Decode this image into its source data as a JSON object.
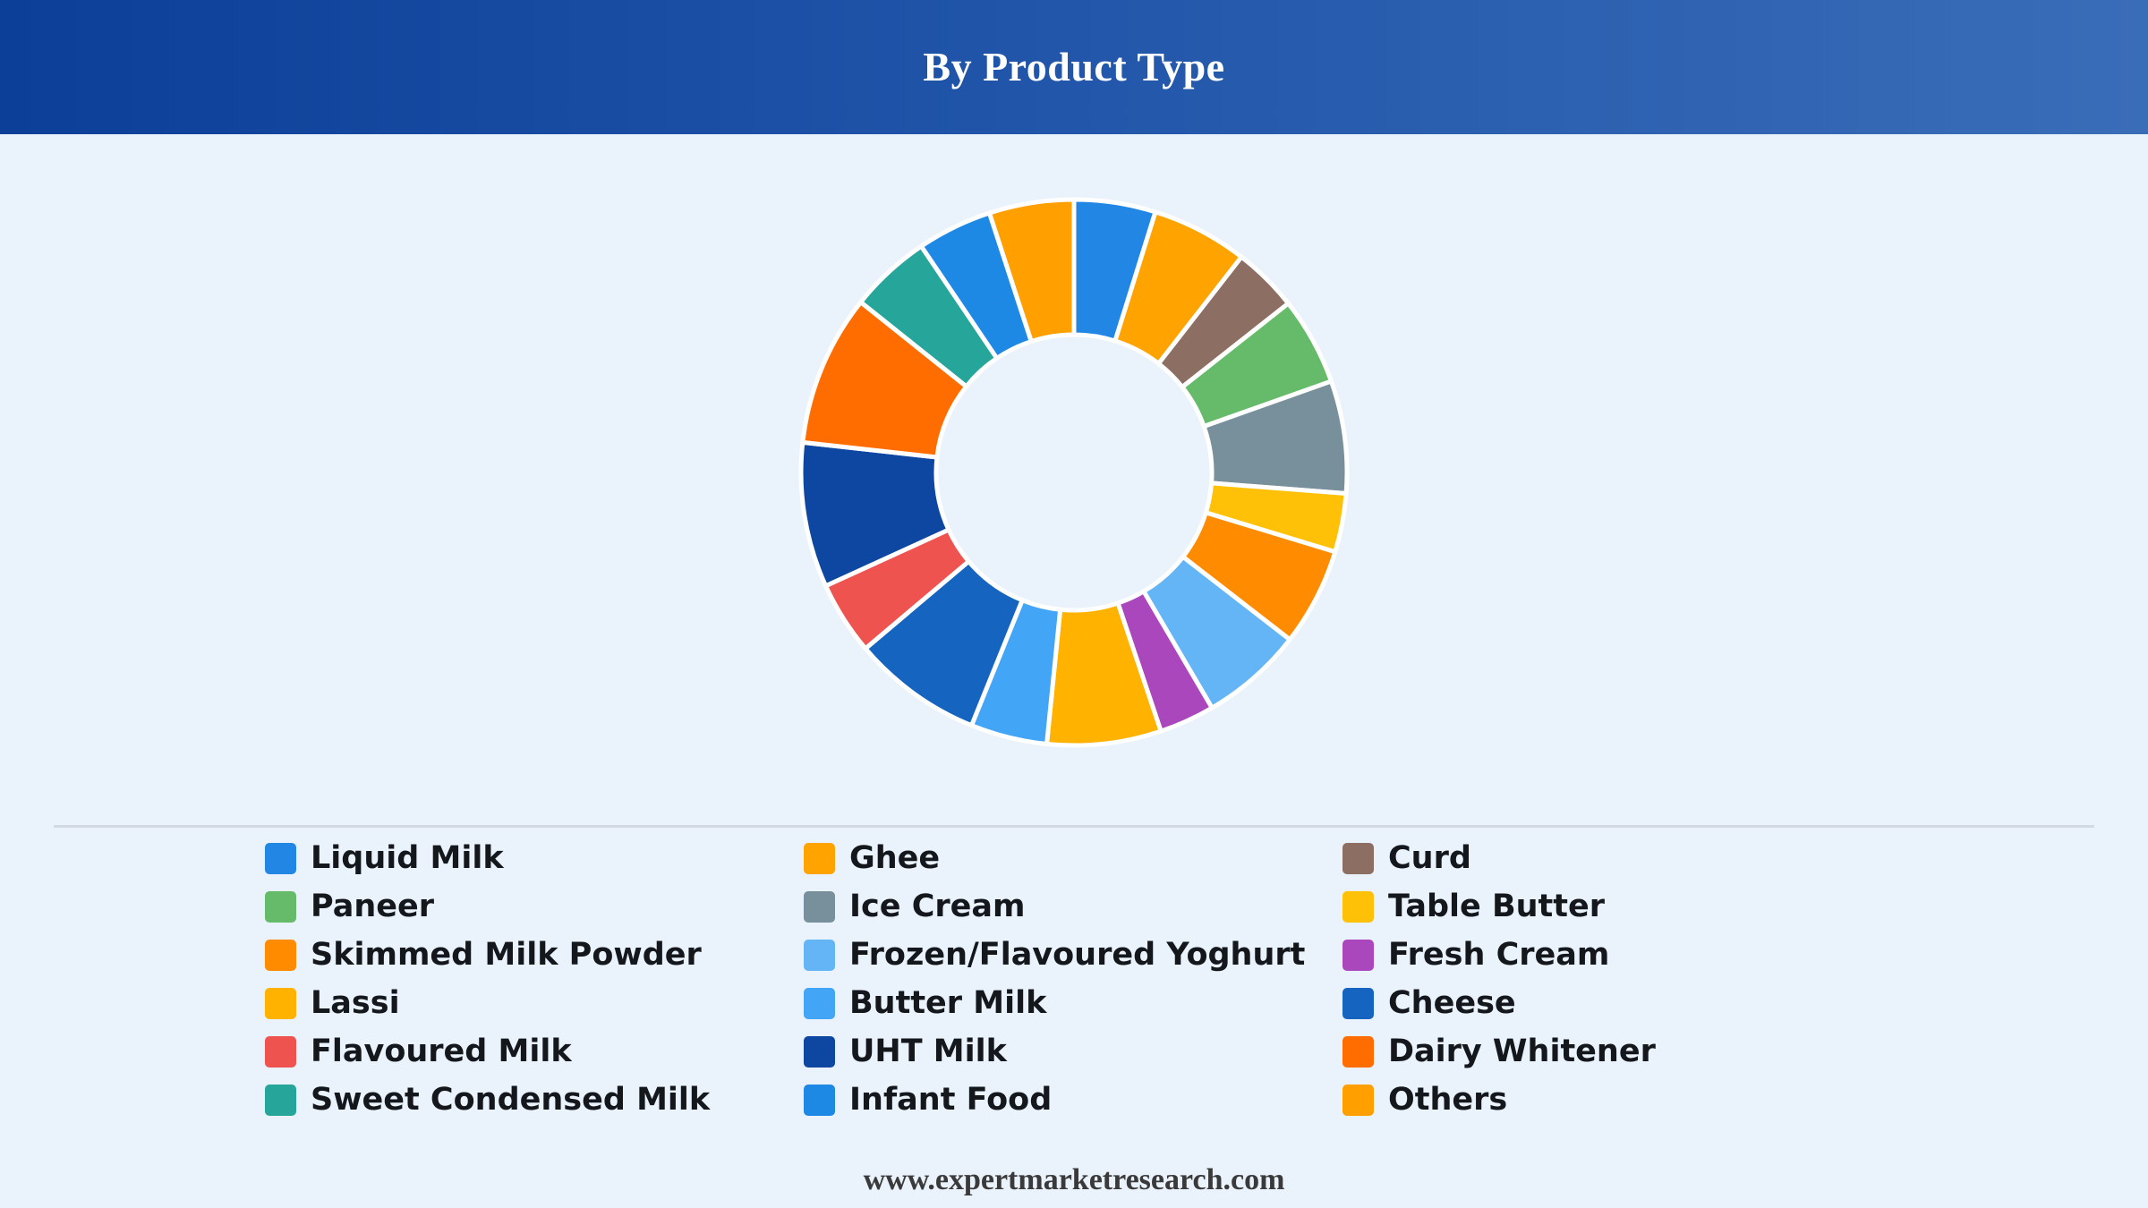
{
  "header": {
    "title": "By Product Type"
  },
  "chart_data": {
    "type": "pie",
    "variant": "donut",
    "title": "By Product Type",
    "legend_position": "bottom",
    "legend_columns": 3,
    "series": [
      {
        "name": "Liquid Milk",
        "value": 5.0,
        "color": "#2186e4"
      },
      {
        "name": "Ghee",
        "value": 5.9,
        "color": "#ffa301"
      },
      {
        "name": "Curd",
        "value": 4.0,
        "color": "#8d6e63"
      },
      {
        "name": "Paneer",
        "value": 5.4,
        "color": "#66bb6a"
      },
      {
        "name": "Ice Cream",
        "value": 6.9,
        "color": "#78909c"
      },
      {
        "name": "Table Butter",
        "value": 3.6,
        "color": "#ffc107"
      },
      {
        "name": "Skimmed Milk Powder",
        "value": 6.0,
        "color": "#ff8c00"
      },
      {
        "name": "Frozen/Flavoured Yoghurt",
        "value": 6.3,
        "color": "#64b5f6"
      },
      {
        "name": "Fresh Cream",
        "value": 3.4,
        "color": "#ab47bc"
      },
      {
        "name": "Lassi",
        "value": 7.0,
        "color": "#ffb300"
      },
      {
        "name": "Butter Milk",
        "value": 4.7,
        "color": "#42a5f5"
      },
      {
        "name": "Cheese",
        "value": 8.0,
        "color": "#1565c0"
      },
      {
        "name": "Flavoured Milk",
        "value": 4.5,
        "color": "#ef5350"
      },
      {
        "name": "UHT Milk",
        "value": 8.9,
        "color": "#0d47a1"
      },
      {
        "name": "Dairy Whitener",
        "value": 9.3,
        "color": "#ff6d00"
      },
      {
        "name": "Sweet Condensed Milk",
        "value": 5.0,
        "color": "#26a69a"
      },
      {
        "name": "Infant Food",
        "value": 4.6,
        "color": "#1e88e5"
      },
      {
        "name": "Others",
        "value": 5.2,
        "color": "#ff9f00"
      }
    ]
  },
  "footer": {
    "source": "www.expertmarketresearch.com"
  }
}
